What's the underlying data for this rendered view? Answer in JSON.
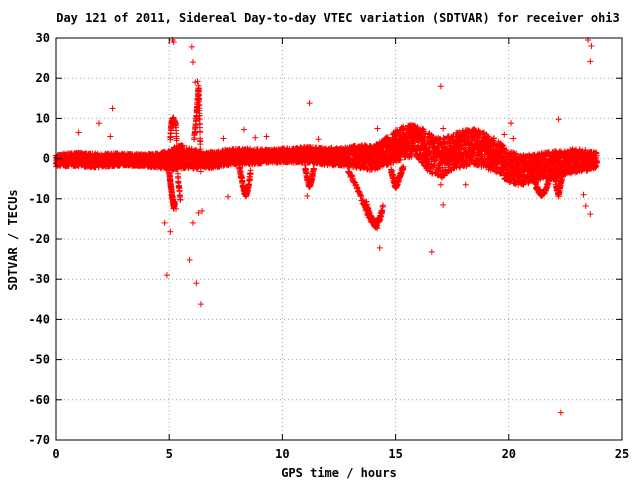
{
  "chart_data": {
    "type": "scatter",
    "title": "Day 121 of 2011, Sidereal Day-to-day VTEC variation (SDTVAR) for receiver ohi3",
    "xlabel": "GPS time / hours",
    "ylabel": "SDTVAR / TECUs",
    "xlim": [
      0,
      25
    ],
    "ylim": [
      -70,
      30
    ],
    "xticks": [
      "0",
      "5",
      "10",
      "15",
      "20",
      "25"
    ],
    "yticks": [
      "30",
      "20",
      "10",
      "0",
      "-10",
      "-20",
      "-30",
      "-40",
      "-50",
      "-60",
      "-70"
    ],
    "grid": true,
    "marker": "+",
    "color": "#ff0000",
    "band": [
      [
        0.0,
        -0.5,
        1.5
      ],
      [
        0.5,
        -0.3,
        1.6
      ],
      [
        1.0,
        -0.2,
        1.7
      ],
      [
        1.5,
        -0.4,
        1.8
      ],
      [
        2.0,
        -0.5,
        1.7
      ],
      [
        2.5,
        -0.3,
        1.6
      ],
      [
        3.0,
        -0.2,
        1.5
      ],
      [
        3.5,
        -0.3,
        1.5
      ],
      [
        4.0,
        -0.4,
        1.6
      ],
      [
        4.5,
        -0.5,
        1.8
      ],
      [
        5.0,
        -0.4,
        2.5
      ],
      [
        5.5,
        0.5,
        3.0
      ],
      [
        6.0,
        0.0,
        2.5
      ],
      [
        6.5,
        -0.5,
        2.0
      ],
      [
        7.0,
        -0.3,
        2.0
      ],
      [
        7.5,
        0.3,
        2.0
      ],
      [
        8.0,
        0.5,
        2.0
      ],
      [
        8.5,
        0.5,
        2.0
      ],
      [
        9.0,
        0.5,
        1.8
      ],
      [
        9.5,
        0.6,
        1.6
      ],
      [
        10.0,
        0.8,
        1.8
      ],
      [
        10.5,
        0.8,
        1.8
      ],
      [
        11.0,
        1.0,
        2.0
      ],
      [
        11.5,
        0.8,
        2.0
      ],
      [
        12.0,
        0.5,
        2.2
      ],
      [
        12.5,
        0.5,
        2.2
      ],
      [
        13.0,
        0.5,
        2.5
      ],
      [
        13.5,
        0.5,
        3.0
      ],
      [
        14.0,
        0.0,
        3.0
      ],
      [
        14.5,
        1.5,
        3.5
      ],
      [
        15.0,
        3.0,
        4.0
      ],
      [
        15.5,
        4.5,
        4.0
      ],
      [
        16.0,
        4.0,
        4.0
      ],
      [
        16.5,
        1.5,
        5.0
      ],
      [
        17.0,
        0.0,
        5.0
      ],
      [
        17.5,
        1.5,
        4.5
      ],
      [
        18.0,
        2.5,
        4.5
      ],
      [
        18.5,
        3.0,
        4.5
      ],
      [
        19.0,
        2.0,
        4.5
      ],
      [
        19.5,
        0.5,
        4.0
      ],
      [
        20.0,
        -2.0,
        4.0
      ],
      [
        20.5,
        -3.0,
        4.0
      ],
      [
        21.0,
        -2.5,
        3.5
      ],
      [
        21.5,
        -2.0,
        3.5
      ],
      [
        22.0,
        -1.5,
        3.5
      ],
      [
        22.5,
        -1.0,
        3.0
      ],
      [
        23.0,
        -0.5,
        3.0
      ],
      [
        23.5,
        -0.5,
        2.5
      ],
      [
        23.9,
        -0.5,
        2.0
      ]
    ],
    "drifts": [
      {
        "name": "dip-13h",
        "x": [
          12.9,
          13.2,
          13.5,
          13.8,
          14.0,
          14.2
        ],
        "y": [
          -3,
          -6,
          -10,
          -14,
          -16,
          -17
        ]
      },
      {
        "name": "dip-14h-band",
        "x": [
          13.7,
          13.85,
          14.0,
          14.15,
          14.3,
          14.45
        ],
        "y": [
          -11,
          -14,
          -15.5,
          -16,
          -15,
          -12
        ]
      },
      {
        "name": "dip-15h",
        "x": [
          14.8,
          14.9,
          15.0,
          15.1,
          15.2,
          15.35
        ],
        "y": [
          -3,
          -5,
          -7,
          -6,
          -4,
          -2
        ]
      },
      {
        "name": "dip-21h",
        "x": [
          21.0,
          21.15,
          21.3,
          21.45,
          21.6,
          21.8
        ],
        "y": [
          -4,
          -6,
          -8,
          -9,
          -8,
          -5
        ]
      },
      {
        "name": "spike-5h",
        "x": [
          5.05,
          5.1,
          5.2,
          5.3,
          5.4,
          5.5
        ],
        "y": [
          5,
          9,
          10,
          8,
          -6,
          -10
        ]
      },
      {
        "name": "spike-6.2h",
        "x": [
          6.1,
          6.2,
          6.25,
          6.3,
          6.35,
          6.4
        ],
        "y": [
          5,
          10,
          14,
          18,
          9,
          -4
        ]
      },
      {
        "name": "drop-5.2h",
        "x": [
          5.0,
          5.05,
          5.1,
          5.15,
          5.2,
          5.25
        ],
        "y": [
          -3,
          -6,
          -8,
          -10,
          -12,
          -11
        ]
      },
      {
        "name": "dip-8.3h",
        "x": [
          8.1,
          8.2,
          8.3,
          8.4,
          8.5,
          8.6
        ],
        "y": [
          -2,
          -5,
          -8,
          -9,
          -7,
          -3
        ]
      },
      {
        "name": "dip-11.2h",
        "x": [
          11.0,
          11.1,
          11.2,
          11.3,
          11.4
        ],
        "y": [
          -2,
          -5,
          -7,
          -5,
          -2
        ]
      },
      {
        "name": "dip-22.2h",
        "x": [
          22.0,
          22.1,
          22.2,
          22.3,
          22.4
        ],
        "y": [
          -3,
          -7,
          -9,
          -6,
          -3
        ]
      }
    ],
    "outliers": [
      [
        1.0,
        6.5
      ],
      [
        1.9,
        8.8
      ],
      [
        2.5,
        12.5
      ],
      [
        2.4,
        5.5
      ],
      [
        4.8,
        -16.0
      ],
      [
        4.9,
        -29.0
      ],
      [
        5.05,
        -18.2
      ],
      [
        5.15,
        29.5
      ],
      [
        5.2,
        29.0
      ],
      [
        5.3,
        -12.5
      ],
      [
        5.9,
        -25.2
      ],
      [
        6.0,
        27.8
      ],
      [
        6.05,
        24.0
      ],
      [
        6.2,
        -31.0
      ],
      [
        6.3,
        -13.5
      ],
      [
        6.4,
        -36.2
      ],
      [
        6.45,
        -13.0
      ],
      [
        6.15,
        19.0
      ],
      [
        6.25,
        19.2
      ],
      [
        6.05,
        -16.0
      ],
      [
        7.4,
        5.0
      ],
      [
        7.6,
        -9.5
      ],
      [
        8.3,
        7.2
      ],
      [
        8.5,
        -7.0
      ],
      [
        8.8,
        5.2
      ],
      [
        9.3,
        5.5
      ],
      [
        11.2,
        13.8
      ],
      [
        11.1,
        -9.3
      ],
      [
        11.6,
        4.8
      ],
      [
        14.3,
        -22.2
      ],
      [
        14.2,
        7.5
      ],
      [
        16.6,
        -23.2
      ],
      [
        17.0,
        18.0
      ],
      [
        17.1,
        7.5
      ],
      [
        17.0,
        -6.5
      ],
      [
        17.1,
        -11.5
      ],
      [
        18.1,
        -6.5
      ],
      [
        20.1,
        8.8
      ],
      [
        20.2,
        5.0
      ],
      [
        22.2,
        9.8
      ],
      [
        22.3,
        -63.2
      ],
      [
        23.5,
        29.5
      ],
      [
        23.65,
        28.0
      ],
      [
        23.6,
        24.2
      ],
      [
        23.4,
        -11.8
      ],
      [
        23.6,
        -13.8
      ],
      [
        23.3,
        -9.0
      ],
      [
        19.8,
        6.0
      ]
    ]
  }
}
